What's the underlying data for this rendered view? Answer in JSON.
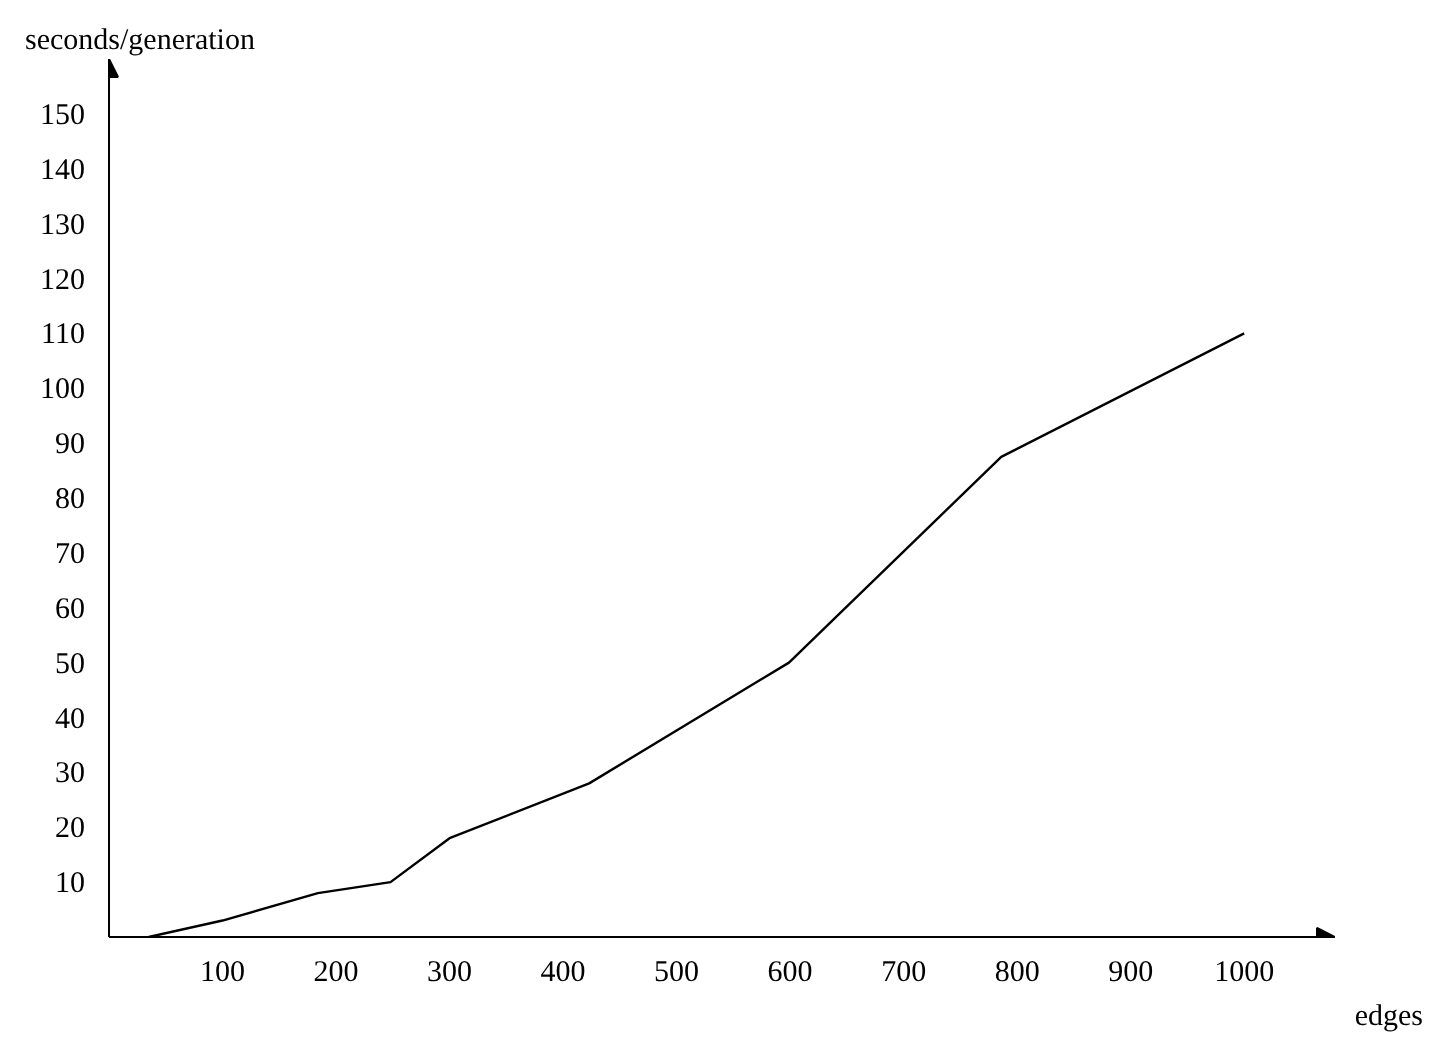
{
  "chart_data": {
    "type": "line",
    "xlabel": "edges",
    "ylabel": "seconds/generation",
    "x": [
      35,
      100,
      184,
      248,
      300,
      423,
      599,
      786,
      1000
    ],
    "series": [
      {
        "color": "#000000",
        "values": [
          0,
          3,
          8,
          10,
          18,
          28,
          50,
          87.5,
          110
        ]
      }
    ],
    "xlim": [
      0,
      1080
    ],
    "ylim": [
      0,
      160
    ],
    "xticks": [
      100,
      200,
      300,
      400,
      500,
      600,
      700,
      800,
      900,
      1000
    ],
    "yticks": [
      10,
      20,
      30,
      40,
      50,
      60,
      70,
      80,
      90,
      100,
      110,
      120,
      130,
      140,
      150
    ],
    "grid": false,
    "marker": "none",
    "line_style": "solid"
  }
}
